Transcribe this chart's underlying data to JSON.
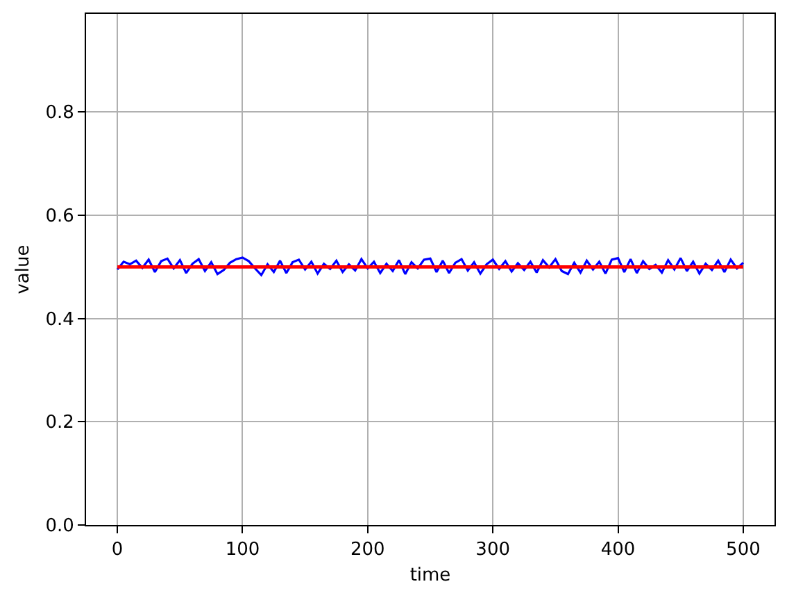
{
  "chart_data": {
    "type": "line",
    "xlabel": "time",
    "ylabel": "value",
    "xlim": [
      -25,
      525
    ],
    "xticks": [
      0,
      100,
      200,
      300,
      400,
      500
    ],
    "ylim": [
      0,
      0.99
    ],
    "yticks": [
      {
        "value": 0,
        "label": "0.0"
      },
      0.2,
      0.4,
      0.6,
      0.8
    ],
    "grid": true,
    "series": [
      {
        "color": "#0000ff",
        "x": [
          0,
          5,
          10,
          15,
          20,
          25,
          30,
          35,
          40,
          45,
          50,
          55,
          60,
          65,
          70,
          75,
          80,
          85,
          90,
          95,
          100,
          105,
          110,
          115,
          120,
          125,
          130,
          135,
          140,
          145,
          150,
          155,
          160,
          165,
          170,
          175,
          180,
          185,
          190,
          195,
          200,
          205,
          210,
          215,
          220,
          225,
          230,
          235,
          240,
          245,
          250,
          255,
          260,
          265,
          270,
          275,
          280,
          285,
          290,
          295,
          300,
          305,
          310,
          315,
          320,
          325,
          330,
          335,
          340,
          345,
          350,
          355,
          360,
          365,
          370,
          375,
          380,
          385,
          390,
          395,
          400,
          405,
          410,
          415,
          420,
          425,
          430,
          435,
          440,
          445,
          450,
          455,
          460,
          465,
          470,
          475,
          480,
          485,
          490,
          495,
          500
        ],
        "values": [
          0.495,
          0.51,
          0.505,
          0.512,
          0.498,
          0.514,
          0.49,
          0.511,
          0.516,
          0.497,
          0.513,
          0.488,
          0.506,
          0.515,
          0.492,
          0.509,
          0.486,
          0.494,
          0.508,
          0.515,
          0.518,
          0.511,
          0.497,
          0.484,
          0.505,
          0.49,
          0.512,
          0.488,
          0.509,
          0.514,
          0.495,
          0.51,
          0.487,
          0.506,
          0.496,
          0.512,
          0.49,
          0.505,
          0.493,
          0.515,
          0.497,
          0.51,
          0.488,
          0.506,
          0.492,
          0.513,
          0.486,
          0.509,
          0.497,
          0.514,
          0.516,
          0.49,
          0.512,
          0.488,
          0.508,
          0.515,
          0.493,
          0.509,
          0.487,
          0.505,
          0.514,
          0.496,
          0.511,
          0.491,
          0.507,
          0.494,
          0.51,
          0.489,
          0.513,
          0.499,
          0.515,
          0.492,
          0.486,
          0.508,
          0.489,
          0.512,
          0.495,
          0.51,
          0.487,
          0.514,
          0.517,
          0.49,
          0.515,
          0.488,
          0.511,
          0.496,
          0.504,
          0.489,
          0.513,
          0.495,
          0.517,
          0.492,
          0.51,
          0.487,
          0.506,
          0.494,
          0.512,
          0.49,
          0.514,
          0.497,
          0.508
        ]
      },
      {
        "color": "#ff0000",
        "x": [
          0,
          500
        ],
        "values": [
          0.5,
          0.5
        ]
      }
    ]
  }
}
